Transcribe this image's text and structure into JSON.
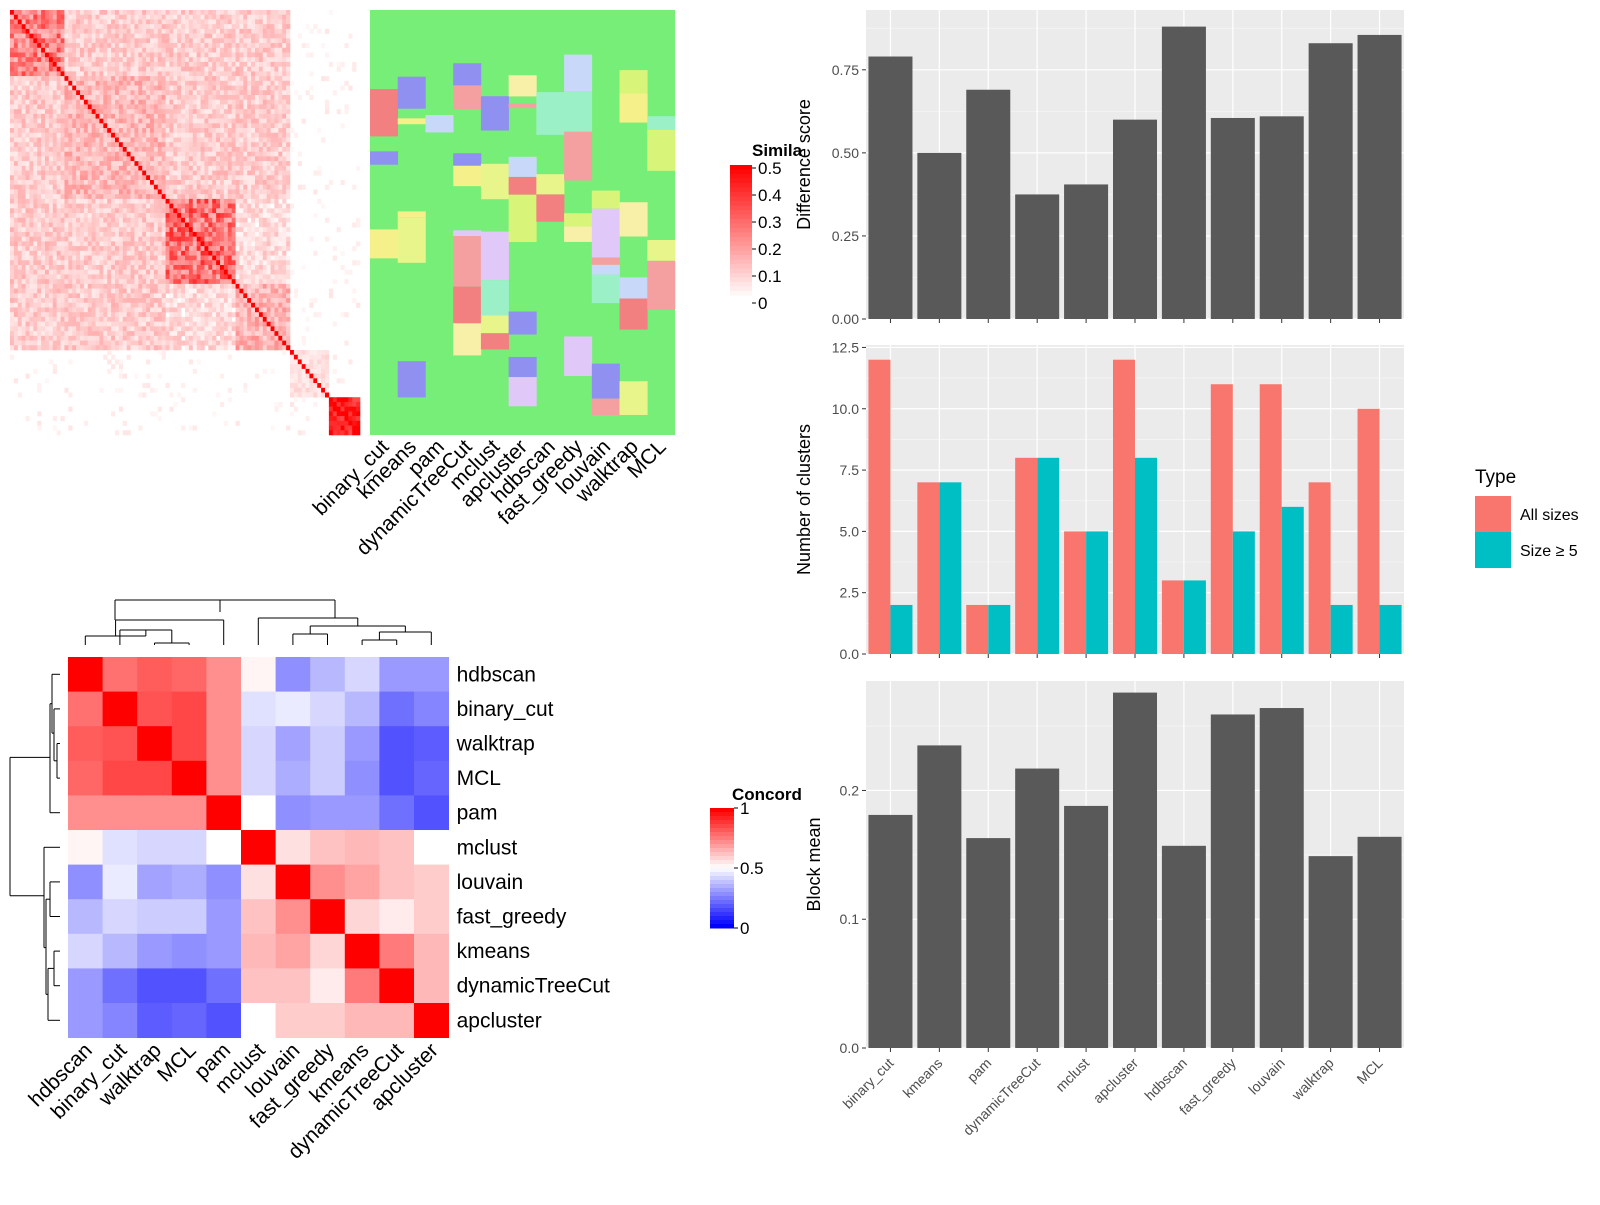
{
  "colors": {
    "panel_bg": "#ebebeb",
    "grid_major": "#ffffff",
    "bar_fill": "#595959",
    "all_sizes": "#f8766d",
    "size5": "#00bfc4",
    "heat_low": "#0000ff",
    "heat_mid": "#ffffff",
    "heat_high": "#ff0000",
    "membership_bg": "#77ee77"
  },
  "similarity_heatmap": {
    "legend_title": "Simila",
    "legend_ticks": [
      "0.5",
      "0.4",
      "0.3",
      "0.2",
      "0.1",
      "0"
    ],
    "methods": [
      "binary_cut",
      "kmeans",
      "pam",
      "dynamicTreeCut",
      "mclust",
      "apcluster",
      "hdbscan",
      "fast_greedy",
      "louvain",
      "walktrap",
      "MCL"
    ]
  },
  "concordance_heatmap": {
    "legend_title": "Concord",
    "legend_ticks": [
      "1",
      "0.5",
      "0"
    ],
    "order": [
      "hdbscan",
      "binary_cut",
      "walktrap",
      "MCL",
      "pam",
      "mclust",
      "louvain",
      "fast_greedy",
      "kmeans",
      "dynamicTreeCut",
      "apcluster"
    ],
    "matrix": [
      [
        1.0,
        0.78,
        0.82,
        0.8,
        0.72,
        0.52,
        0.28,
        0.36,
        0.42,
        0.3,
        0.3
      ],
      [
        0.78,
        1.0,
        0.84,
        0.86,
        0.72,
        0.44,
        0.46,
        0.42,
        0.36,
        0.22,
        0.26
      ],
      [
        0.82,
        0.84,
        1.0,
        0.86,
        0.72,
        0.42,
        0.32,
        0.4,
        0.3,
        0.16,
        0.18
      ],
      [
        0.8,
        0.86,
        0.86,
        1.0,
        0.72,
        0.42,
        0.34,
        0.4,
        0.28,
        0.16,
        0.2
      ],
      [
        0.72,
        0.72,
        0.72,
        0.72,
        1.0,
        0.5,
        0.28,
        0.3,
        0.3,
        0.22,
        0.16
      ],
      [
        0.52,
        0.44,
        0.42,
        0.42,
        0.5,
        1.0,
        0.56,
        0.62,
        0.64,
        0.62,
        0.5
      ],
      [
        0.28,
        0.46,
        0.32,
        0.34,
        0.28,
        0.56,
        1.0,
        0.72,
        0.68,
        0.62,
        0.6
      ],
      [
        0.36,
        0.42,
        0.4,
        0.4,
        0.3,
        0.62,
        0.72,
        1.0,
        0.58,
        0.54,
        0.6
      ],
      [
        0.42,
        0.36,
        0.3,
        0.28,
        0.3,
        0.64,
        0.68,
        0.58,
        1.0,
        0.76,
        0.64
      ],
      [
        0.3,
        0.22,
        0.16,
        0.16,
        0.22,
        0.62,
        0.62,
        0.54,
        0.76,
        1.0,
        0.64
      ],
      [
        0.3,
        0.26,
        0.18,
        0.2,
        0.16,
        0.5,
        0.6,
        0.6,
        0.64,
        0.64,
        1.0
      ]
    ]
  },
  "chart_data": [
    {
      "type": "bar",
      "categories": [
        "binary_cut",
        "kmeans",
        "pam",
        "dynamicTreeCut",
        "mclust",
        "apcluster",
        "hdbscan",
        "fast_greedy",
        "louvain",
        "walktrap",
        "MCL"
      ],
      "values": [
        0.79,
        0.5,
        0.69,
        0.375,
        0.405,
        0.6,
        0.88,
        0.605,
        0.61,
        0.83,
        0.855
      ],
      "xlabel": "",
      "ylabel": "Difference score",
      "ylim": [
        0,
        0.93
      ],
      "yticks": [
        0,
        0.25,
        0.5,
        0.75
      ],
      "ytick_labels": [
        "0.00",
        "0.25",
        "0.50",
        "0.75"
      ]
    },
    {
      "type": "bar",
      "categories": [
        "binary_cut",
        "kmeans",
        "pam",
        "dynamicTreeCut",
        "mclust",
        "apcluster",
        "hdbscan",
        "fast_greedy",
        "louvain",
        "walktrap",
        "MCL"
      ],
      "series": [
        {
          "name": "All sizes",
          "values": [
            12,
            7,
            2,
            8,
            5,
            12,
            3,
            11,
            11,
            7,
            10
          ]
        },
        {
          "name": "Size ≥ 5",
          "values": [
            2,
            7,
            2,
            8,
            5,
            8,
            3,
            5,
            6,
            2,
            2
          ]
        }
      ],
      "xlabel": "",
      "ylabel": "Number of clusters",
      "ylim": [
        0,
        12.6
      ],
      "yticks": [
        0,
        2.5,
        5,
        7.5,
        10,
        12.5
      ],
      "ytick_labels": [
        "0.0",
        "2.5",
        "5.0",
        "7.5",
        "10.0",
        "12.5"
      ],
      "legend_title": "Type",
      "legend_position": "right"
    },
    {
      "type": "bar",
      "categories": [
        "binary_cut",
        "kmeans",
        "pam",
        "dynamicTreeCut",
        "mclust",
        "apcluster",
        "hdbscan",
        "fast_greedy",
        "louvain",
        "walktrap",
        "MCL"
      ],
      "values": [
        0.181,
        0.235,
        0.163,
        0.217,
        0.188,
        0.276,
        0.157,
        0.259,
        0.264,
        0.149,
        0.164
      ],
      "xlabel": "",
      "ylabel": "Block mean",
      "ylim": [
        0,
        0.285
      ],
      "yticks": [
        0,
        0.1,
        0.2
      ],
      "ytick_labels": [
        "0.0",
        "0.1",
        "0.2"
      ]
    }
  ]
}
